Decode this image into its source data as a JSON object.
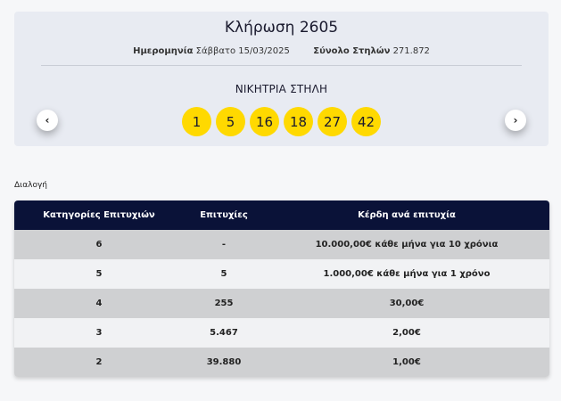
{
  "draw": {
    "title": "Κλήρωση 2605",
    "date_label": "Ημερομηνία",
    "date_value": "Σάββατο 15/03/2025",
    "columns_label": "Σύνολο Στηλών",
    "columns_value": "271.872",
    "winning_label": "ΝΙΚΗΤΡΙΑ ΣΤΗΛΗ",
    "numbers": [
      "1",
      "5",
      "16",
      "18",
      "27",
      "42"
    ],
    "ball_color": "#ffd900",
    "prev_icon": "‹",
    "next_icon": "›"
  },
  "section": {
    "label": "Διαλογή"
  },
  "table": {
    "headers": [
      "Κατηγορίες Επιτυχιών",
      "Επιτυχίες",
      "Κέρδη ανά επιτυχία"
    ],
    "header_color": "#0a1238",
    "rows": [
      [
        "6",
        "-",
        "10.000,00€ κάθε μήνα για 10 χρόνια"
      ],
      [
        "5",
        "5",
        "1.000,00€ κάθε μήνα για 1 χρόνο"
      ],
      [
        "4",
        "255",
        "30,00€"
      ],
      [
        "3",
        "5.467",
        "2,00€"
      ],
      [
        "2",
        "39.880",
        "1,00€"
      ]
    ]
  }
}
